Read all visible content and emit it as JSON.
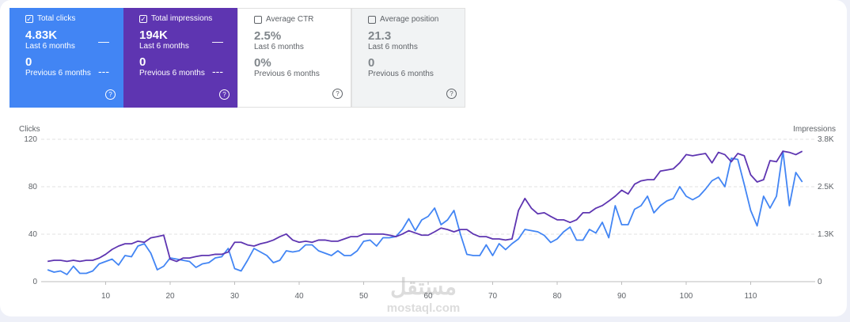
{
  "cards": [
    {
      "label": "Total clicks",
      "value": "4.83K",
      "period": "Last 6 months",
      "prev_value": "0",
      "prev_period": "Previous 6 months",
      "checked": true,
      "color": "#4285f4"
    },
    {
      "label": "Total impressions",
      "value": "194K",
      "period": "Last 6 months",
      "prev_value": "0",
      "prev_period": "Previous 6 months",
      "checked": true,
      "color": "#5e35b1"
    },
    {
      "label": "Average CTR",
      "value": "2.5%",
      "period": "Last 6 months",
      "prev_value": "0%",
      "prev_period": "Previous 6 months",
      "checked": false,
      "color": "#ffffff"
    },
    {
      "label": "Average position",
      "value": "21.3",
      "period": "Last 6 months",
      "prev_value": "0",
      "prev_period": "Previous 6 months",
      "checked": false,
      "color": "#f1f3f4"
    }
  ],
  "watermark": [
    "مستقل",
    "mostaql.com"
  ],
  "chart_data": {
    "type": "line",
    "y_label": "Clicks",
    "y2_label": "Impressions",
    "x": [
      1,
      2,
      3,
      4,
      5,
      6,
      7,
      8,
      9,
      10,
      11,
      12,
      13,
      14,
      15,
      16,
      17,
      18,
      19,
      20,
      21,
      22,
      23,
      24,
      25,
      26,
      27,
      28,
      29,
      30,
      31,
      32,
      33,
      34,
      35,
      36,
      37,
      38,
      39,
      40,
      41,
      42,
      43,
      44,
      45,
      46,
      47,
      48,
      49,
      50,
      51,
      52,
      53,
      54,
      55,
      56,
      57,
      58,
      59,
      60,
      61,
      62,
      63,
      64,
      65,
      66,
      67,
      68,
      69,
      70,
      71,
      72,
      73,
      74,
      75,
      76,
      77,
      78,
      79,
      80,
      81,
      82,
      83,
      84,
      85,
      86,
      87,
      88,
      89,
      90,
      91,
      92,
      93,
      94,
      95,
      96,
      97,
      98,
      99,
      100,
      101,
      102,
      103,
      104,
      105,
      106,
      107,
      108,
      109,
      110,
      111,
      112,
      113,
      114,
      115,
      116,
      117,
      118
    ],
    "series": [
      {
        "name": "Clicks",
        "color": "#4285f4",
        "axis": "y",
        "values": [
          10,
          8,
          9,
          6,
          13,
          7,
          7,
          9,
          15,
          17,
          19,
          14,
          22,
          21,
          30,
          32,
          24,
          10,
          13,
          20,
          19,
          18,
          17,
          12,
          15,
          16,
          20,
          21,
          28,
          11,
          9,
          18,
          28,
          25,
          22,
          16,
          18,
          26,
          25,
          26,
          31,
          31,
          26,
          24,
          22,
          26,
          22,
          22,
          26,
          34,
          35,
          30,
          37,
          37,
          38,
          44,
          53,
          43,
          52,
          55,
          62,
          48,
          52,
          60,
          40,
          23,
          22,
          22,
          31,
          22,
          32,
          27,
          32,
          36,
          44,
          43,
          42,
          39,
          33,
          36,
          42,
          46,
          35,
          35,
          44,
          41,
          50,
          37,
          64,
          48,
          48,
          61,
          64,
          72,
          58,
          64,
          68,
          70,
          80,
          72,
          69,
          72,
          78,
          85,
          88,
          80,
          104,
          103,
          82,
          60,
          47,
          72,
          62,
          72,
          110,
          64,
          92,
          84
        ]
      },
      {
        "name": "Impressions",
        "color": "#5e35b1",
        "axis": "y2",
        "values": [
          540,
          570,
          570,
          540,
          570,
          540,
          570,
          570,
          630,
          730,
          860,
          950,
          1010,
          1010,
          1080,
          1050,
          1170,
          1200,
          1240,
          600,
          540,
          630,
          630,
          670,
          700,
          700,
          730,
          730,
          790,
          1050,
          1050,
          980,
          950,
          1010,
          1050,
          1110,
          1200,
          1270,
          1110,
          1050,
          1080,
          1050,
          1110,
          1110,
          1080,
          1080,
          1140,
          1200,
          1200,
          1270,
          1270,
          1270,
          1270,
          1240,
          1200,
          1270,
          1360,
          1300,
          1240,
          1240,
          1330,
          1430,
          1390,
          1330,
          1390,
          1390,
          1270,
          1200,
          1200,
          1140,
          1140,
          1110,
          1140,
          1900,
          2220,
          1960,
          1810,
          1840,
          1740,
          1650,
          1650,
          1580,
          1650,
          1840,
          1840,
          1960,
          2030,
          2150,
          2280,
          2440,
          2340,
          2600,
          2690,
          2720,
          2720,
          2950,
          2980,
          3010,
          3170,
          3390,
          3360,
          3390,
          3420,
          3170,
          3450,
          3390,
          3200,
          3420,
          3360,
          2850,
          2660,
          2720,
          3230,
          3200,
          3480,
          3450,
          3390,
          3480
        ]
      }
    ],
    "xlim": [
      0,
      120
    ],
    "xticks": [
      10,
      20,
      30,
      40,
      50,
      60,
      70,
      80,
      90,
      100,
      110
    ],
    "ylim": [
      0,
      120
    ],
    "yticks": [
      0,
      40,
      80,
      120
    ],
    "y2lim": [
      0,
      3800
    ],
    "y2ticks": [
      0,
      {
        "value": 1267,
        "label": "1.3K"
      },
      {
        "value": 2533,
        "label": "2.5K"
      },
      {
        "value": 3800,
        "label": "3.8K"
      }
    ],
    "grid": true
  }
}
